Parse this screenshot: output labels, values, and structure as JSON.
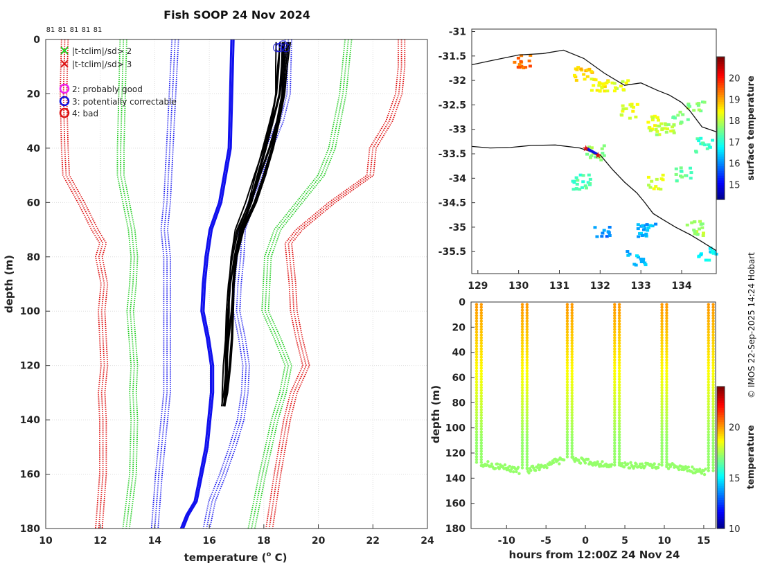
{
  "figure": {
    "title": "Fish SOOP 24 Nov 2024",
    "credit": "© IMOS 22-Sep-2025 14:24 Hobart"
  },
  "chart_data": [
    {
      "id": "profile",
      "type": "line",
      "title": "Fish SOOP 24 Nov 2024",
      "xlabel": "temperature (° C)",
      "xlabel_main": "temperature (",
      "xlabel_sup": "o",
      "xlabel_end": " C)",
      "ylabel": "depth (m)",
      "xlim": [
        10,
        24
      ],
      "ylim": [
        180,
        0
      ],
      "xticks": [
        10,
        12,
        14,
        16,
        18,
        20,
        22,
        24
      ],
      "yticks": [
        0,
        20,
        40,
        60,
        80,
        100,
        120,
        140,
        160,
        180
      ],
      "grid": true,
      "top_counts": [
        "81",
        "81",
        "81",
        "81",
        "81"
      ],
      "legend": [
        {
          "marker": "x",
          "color": "#22cc22",
          "label": "|t-tclim|/sd> 2"
        },
        {
          "marker": "x",
          "color": "#dd1111",
          "label": "|t-tclim|/sd> 3"
        },
        {
          "marker": "o",
          "color": "#ee22ee",
          "label": "2: probably good"
        },
        {
          "marker": "o",
          "color": "#1111dd",
          "label": "3: potentially correctable"
        },
        {
          "marker": "o",
          "color": "#dd1111",
          "label": "4: bad"
        }
      ],
      "climatology_mean": {
        "color": "#1010ee",
        "depth": [
          0,
          20,
          40,
          60,
          70,
          80,
          90,
          100,
          110,
          120,
          130,
          140,
          150,
          160,
          170,
          175,
          180
        ],
        "temp": [
          16.85,
          16.8,
          16.75,
          16.4,
          16.05,
          15.9,
          15.8,
          15.75,
          15.95,
          16.1,
          16.1,
          16.0,
          15.9,
          15.7,
          15.5,
          15.2,
          15.0
        ]
      },
      "climatology_bounds": [
        {
          "name": "mean-2sd",
          "color": "#2222ee",
          "depth": [
            0,
            20,
            40,
            60,
            70,
            80,
            90,
            100,
            120,
            130,
            140,
            160,
            180
          ],
          "temp": [
            14.75,
            14.65,
            14.55,
            14.45,
            14.35,
            14.45,
            14.45,
            14.45,
            14.45,
            14.45,
            14.35,
            14.15,
            14.0
          ]
        },
        {
          "name": "mean+2sd",
          "color": "#2222ee",
          "depth": [
            0,
            20,
            30,
            40,
            50,
            60,
            70,
            80,
            90,
            100,
            110,
            120,
            130,
            140,
            150,
            160,
            170,
            180
          ],
          "temp": [
            18.9,
            18.85,
            18.6,
            18.2,
            17.95,
            17.55,
            17.2,
            17.15,
            17.05,
            17.0,
            17.2,
            17.35,
            17.3,
            17.15,
            16.85,
            16.5,
            16.1,
            15.9
          ]
        },
        {
          "name": "mean-4sd",
          "color": "#22cc22",
          "depth": [
            0,
            20,
            40,
            50,
            60,
            70,
            80,
            90,
            100,
            120,
            130,
            140,
            160,
            180
          ],
          "temp": [
            12.85,
            12.8,
            12.75,
            12.75,
            12.95,
            13.15,
            13.25,
            13.2,
            13.1,
            13.25,
            13.2,
            13.25,
            13.2,
            12.95
          ]
        },
        {
          "name": "mean+4sd",
          "color": "#22cc22",
          "depth": [
            0,
            20,
            40,
            50,
            60,
            70,
            80,
            90,
            100,
            110,
            120,
            130,
            140,
            160,
            180
          ],
          "temp": [
            21.1,
            20.9,
            20.5,
            20.1,
            19.3,
            18.5,
            18.15,
            18.1,
            18.05,
            18.5,
            18.9,
            18.7,
            18.4,
            17.95,
            17.55
          ]
        },
        {
          "name": "mean-6sd",
          "color": "#dd1111",
          "depth": [
            0,
            20,
            40,
            50,
            60,
            70,
            75,
            80,
            90,
            100,
            120,
            130,
            140,
            160,
            180
          ],
          "temp": [
            10.7,
            10.65,
            10.7,
            10.75,
            11.3,
            11.8,
            12.1,
            11.95,
            12.15,
            12.05,
            12.15,
            12.05,
            12.1,
            12.1,
            11.95
          ]
        },
        {
          "name": "mean+6sd",
          "color": "#dd1111",
          "depth": [
            0,
            10,
            20,
            30,
            40,
            50,
            60,
            70,
            75,
            80,
            90,
            100,
            110,
            120,
            130,
            140,
            160,
            180
          ],
          "temp": [
            23.05,
            23.05,
            22.95,
            22.6,
            22.0,
            21.9,
            20.5,
            19.3,
            18.9,
            18.95,
            19.05,
            19.1,
            19.3,
            19.55,
            19.1,
            18.85,
            18.5,
            18.2
          ]
        }
      ],
      "profile_color": "#000000",
      "profile_depth": [
        1,
        10,
        20,
        30,
        40,
        50,
        60,
        70,
        80,
        90,
        100,
        110,
        120,
        130,
        135
      ],
      "profile_base_temp": [
        18.6,
        18.55,
        18.5,
        18.3,
        18.05,
        17.75,
        17.45,
        17.05,
        16.85,
        16.75,
        16.7,
        16.65,
        16.6,
        16.55,
        16.5
      ],
      "profile_offsets": [
        0,
        0.1,
        0.2,
        0.25,
        -0.05,
        0.15,
        0.3,
        0.05,
        -0.1,
        0.35
      ],
      "qc_circles": {
        "color": "#1111dd",
        "temp": [
          18.5,
          18.6,
          18.7,
          18.8
        ],
        "depth": [
          3,
          3,
          2,
          3
        ]
      }
    },
    {
      "id": "map",
      "type": "heatmap",
      "xlim": [
        128.85,
        134.85
      ],
      "ylim": [
        -35.95,
        -30.95
      ],
      "xticks": [
        129,
        130,
        131,
        132,
        133,
        134
      ],
      "yticks": [
        -31,
        -31.5,
        -32,
        -32.5,
        -33,
        -33.5,
        -34,
        -34.5,
        -35,
        -35.5
      ],
      "ytick_labels": [
        "-31",
        "-31.5",
        "-32",
        "-32.5",
        "-33",
        "-33.5",
        "-34",
        "-34.5",
        "-35",
        "-35.5"
      ],
      "colorbar_label": "surface temperature",
      "colorbar_ticks": [
        15,
        16,
        17,
        18,
        19,
        20
      ],
      "colorbar_range": [
        14.3,
        21
      ],
      "coastline_upper": [
        [
          128.85,
          -31.68
        ],
        [
          129.3,
          -31.6
        ],
        [
          130,
          -31.48
        ],
        [
          130.6,
          -31.45
        ],
        [
          131.1,
          -31.38
        ],
        [
          131.6,
          -31.55
        ],
        [
          132.1,
          -31.85
        ],
        [
          132.6,
          -32.1
        ],
        [
          133.0,
          -32.05
        ],
        [
          133.4,
          -32.2
        ],
        [
          133.7,
          -32.3
        ],
        [
          134.0,
          -32.45
        ],
        [
          134.2,
          -32.62
        ],
        [
          134.5,
          -32.95
        ],
        [
          134.85,
          -33.05
        ]
      ],
      "coastline_lower": [
        [
          128.85,
          -33.35
        ],
        [
          129.3,
          -33.38
        ],
        [
          129.8,
          -33.37
        ],
        [
          130.3,
          -33.33
        ],
        [
          130.9,
          -33.32
        ],
        [
          131.5,
          -33.38
        ],
        [
          132.0,
          -33.52
        ],
        [
          132.3,
          -33.82
        ],
        [
          132.6,
          -34.08
        ],
        [
          132.9,
          -34.3
        ],
        [
          133.1,
          -34.5
        ],
        [
          133.3,
          -34.72
        ],
        [
          133.55,
          -34.85
        ],
        [
          133.85,
          -35.0
        ],
        [
          134.2,
          -35.15
        ],
        [
          134.5,
          -35.3
        ],
        [
          134.85,
          -35.48
        ]
      ],
      "sst_patches": [
        {
          "lon": 130.05,
          "lat": -31.6,
          "temp": 19.5
        },
        {
          "lon": 131.55,
          "lat": -31.85,
          "temp": 18.8
        },
        {
          "lon": 131.95,
          "lat": -32.05,
          "temp": 18.5
        },
        {
          "lon": 132.45,
          "lat": -32.1,
          "temp": 18.2
        },
        {
          "lon": 132.7,
          "lat": -32.6,
          "temp": 18.3
        },
        {
          "lon": 133.35,
          "lat": -32.85,
          "temp": 18.3
        },
        {
          "lon": 133.55,
          "lat": -33.0,
          "temp": 18.0
        },
        {
          "lon": 133.95,
          "lat": -32.75,
          "temp": 17.6
        },
        {
          "lon": 134.3,
          "lat": -32.55,
          "temp": 17.8
        },
        {
          "lon": 134.5,
          "lat": -33.3,
          "temp": 17.2
        },
        {
          "lon": 131.85,
          "lat": -33.45,
          "temp": 17.8
        },
        {
          "lon": 131.5,
          "lat": -34.05,
          "temp": 17.3
        },
        {
          "lon": 133.3,
          "lat": -34.05,
          "temp": 18.2
        },
        {
          "lon": 134.0,
          "lat": -33.9,
          "temp": 17.5
        },
        {
          "lon": 134.3,
          "lat": -35.0,
          "temp": 17.9
        },
        {
          "lon": 133.1,
          "lat": -35.05,
          "temp": 16.3
        },
        {
          "lon": 132.0,
          "lat": -35.05,
          "temp": 16.0
        },
        {
          "lon": 132.85,
          "lat": -35.6,
          "temp": 16.4
        },
        {
          "lon": 134.6,
          "lat": -35.55,
          "temp": 16.7
        }
      ],
      "track": [
        [
          131.65,
          -33.38
        ],
        [
          131.8,
          -33.45
        ],
        [
          131.95,
          -33.52
        ]
      ],
      "track_color": "#1111dd",
      "star_color": "#dd1111"
    },
    {
      "id": "timeseries",
      "type": "scatter",
      "xlabel": "hours from 12:00Z 24 Nov 24",
      "ylabel": "depth (m)",
      "xlim": [
        -14.5,
        16.5
      ],
      "ylim": [
        180,
        0
      ],
      "xticks": [
        -10,
        -5,
        0,
        5,
        10,
        15
      ],
      "yticks": [
        0,
        20,
        40,
        60,
        80,
        100,
        120,
        140,
        160,
        180
      ],
      "colorbar_label": "temperature",
      "colorbar_ticks": [
        10,
        15,
        20
      ],
      "colorbar_range": [
        10,
        24
      ],
      "cast_hours": [
        -13.8,
        -8.0,
        -2.3,
        3.7,
        9.7,
        15.6
      ],
      "bottom_depth": [
        128,
        134,
        125,
        130,
        130,
        135
      ],
      "surface_temp": 20.2,
      "bottom_temp": 17.3
    }
  ]
}
